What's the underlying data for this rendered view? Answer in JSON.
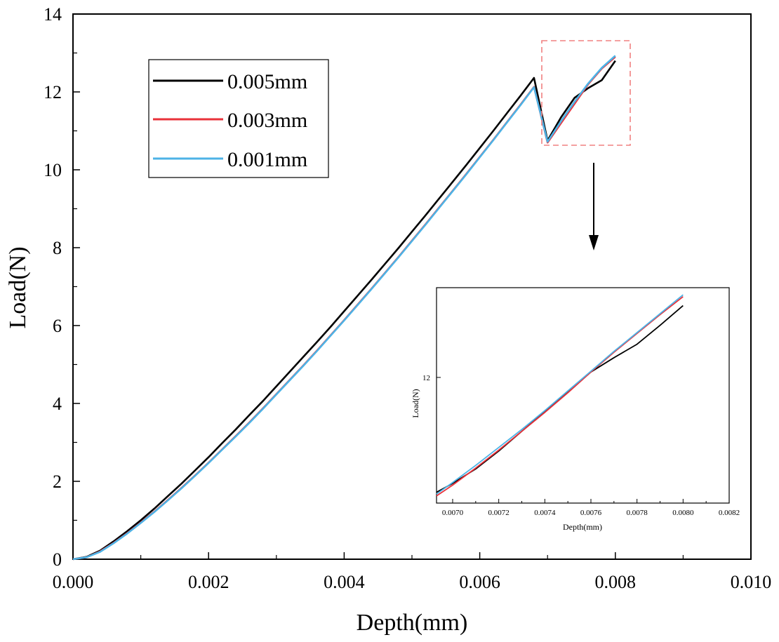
{
  "chart_data": [
    {
      "type": "line",
      "title": "",
      "xlabel": "Depth(mm)",
      "ylabel": "Load(N)",
      "xlim": [
        0.0,
        0.01
      ],
      "ylim": [
        0,
        14
      ],
      "xticks": [
        "0.000",
        "0.002",
        "0.004",
        "0.006",
        "0.008",
        "0.010"
      ],
      "xtick_values": [
        0.0,
        0.002,
        0.004,
        0.006,
        0.008,
        0.01
      ],
      "yticks": [
        "0",
        "2",
        "4",
        "6",
        "8",
        "10",
        "12",
        "14"
      ],
      "ytick_values": [
        0,
        2,
        4,
        6,
        8,
        10,
        12,
        14
      ],
      "grid": false,
      "legend_position": "top-left",
      "series": [
        {
          "name": "0.005mm",
          "color": "#000000",
          "x": [
            0.0,
            0.0002,
            0.0004,
            0.0006,
            0.0008,
            0.001,
            0.0012,
            0.0014,
            0.0016,
            0.0018,
            0.002,
            0.0022,
            0.0024,
            0.0026,
            0.0028,
            0.003,
            0.0032,
            0.0034,
            0.0036,
            0.0038,
            0.004,
            0.0042,
            0.0044,
            0.0046,
            0.0048,
            0.005,
            0.0052,
            0.0054,
            0.0056,
            0.0058,
            0.006,
            0.0062,
            0.0064,
            0.0066,
            0.0068,
            0.007,
            0.0072,
            0.0074,
            0.0076,
            0.0078,
            0.008
          ],
          "y": [
            0.0,
            0.06,
            0.22,
            0.46,
            0.72,
            1.0,
            1.3,
            1.62,
            1.94,
            2.28,
            2.62,
            2.98,
            3.33,
            3.7,
            4.06,
            4.44,
            4.82,
            5.2,
            5.58,
            5.97,
            6.37,
            6.77,
            7.17,
            7.58,
            7.99,
            8.41,
            8.83,
            9.26,
            9.69,
            10.12,
            10.56,
            11.0,
            11.45,
            11.9,
            12.36,
            10.75,
            11.35,
            11.85,
            12.1,
            12.3,
            12.8
          ]
        },
        {
          "name": "0.003mm",
          "color": "#e8313a",
          "x": [
            0.0,
            0.0002,
            0.0004,
            0.0006,
            0.0008,
            0.001,
            0.0012,
            0.0014,
            0.0016,
            0.0018,
            0.002,
            0.0022,
            0.0024,
            0.0026,
            0.0028,
            0.003,
            0.0032,
            0.0034,
            0.0036,
            0.0038,
            0.004,
            0.0042,
            0.0044,
            0.0046,
            0.0048,
            0.005,
            0.0052,
            0.0054,
            0.0056,
            0.0058,
            0.006,
            0.0062,
            0.0064,
            0.0066,
            0.0068,
            0.007,
            0.0072,
            0.0074,
            0.0076,
            0.0078,
            0.008
          ],
          "y": [
            0.0,
            0.05,
            0.2,
            0.42,
            0.67,
            0.94,
            1.22,
            1.52,
            1.83,
            2.15,
            2.48,
            2.82,
            3.16,
            3.51,
            3.87,
            4.24,
            4.61,
            4.98,
            5.36,
            5.75,
            6.14,
            6.54,
            6.94,
            7.35,
            7.76,
            8.18,
            8.6,
            9.03,
            9.46,
            9.89,
            10.33,
            10.77,
            11.22,
            11.67,
            12.13,
            10.7,
            11.2,
            11.7,
            12.2,
            12.6,
            12.9
          ]
        },
        {
          "name": "0.001mm",
          "color": "#4db3e6",
          "x": [
            0.0,
            0.0002,
            0.0004,
            0.0006,
            0.0008,
            0.001,
            0.0012,
            0.0014,
            0.0016,
            0.0018,
            0.002,
            0.0022,
            0.0024,
            0.0026,
            0.0028,
            0.003,
            0.0032,
            0.0034,
            0.0036,
            0.0038,
            0.004,
            0.0042,
            0.0044,
            0.0046,
            0.0048,
            0.005,
            0.0052,
            0.0054,
            0.0056,
            0.0058,
            0.006,
            0.0062,
            0.0064,
            0.0066,
            0.0068,
            0.007,
            0.0072,
            0.0074,
            0.0076,
            0.0078,
            0.008
          ],
          "y": [
            0.0,
            0.05,
            0.19,
            0.41,
            0.66,
            0.93,
            1.21,
            1.51,
            1.82,
            2.14,
            2.47,
            2.81,
            3.15,
            3.5,
            3.86,
            4.23,
            4.6,
            4.97,
            5.35,
            5.74,
            6.13,
            6.53,
            6.93,
            7.34,
            7.75,
            8.17,
            8.59,
            9.02,
            9.45,
            9.88,
            10.32,
            10.76,
            11.21,
            11.66,
            12.12,
            10.72,
            11.25,
            11.75,
            12.22,
            12.62,
            12.93
          ]
        }
      ]
    },
    {
      "type": "line",
      "title": "",
      "xlabel": "Depth(mm)",
      "ylabel": "Load(N)",
      "xlim": [
        0.00693,
        0.0082
      ],
      "ylim": [
        10.6,
        13.0
      ],
      "xticks": [
        "0.0070",
        "0.0072",
        "0.0074",
        "0.0076",
        "0.0078",
        "0.0080",
        "0.0082"
      ],
      "xtick_values": [
        0.007,
        0.0072,
        0.0074,
        0.0076,
        0.0078,
        0.008,
        0.0082
      ],
      "yticks": [
        "12"
      ],
      "ytick_values": [
        12
      ],
      "grid": false,
      "series": [
        {
          "name": "0.005mm",
          "color": "#000000",
          "x": [
            0.00693,
            0.007,
            0.0071,
            0.0072,
            0.0073,
            0.0074,
            0.0075,
            0.0076,
            0.0077,
            0.0078,
            0.0079,
            0.008
          ],
          "y": [
            10.72,
            10.82,
            10.98,
            11.18,
            11.4,
            11.62,
            11.84,
            12.06,
            12.22,
            12.37,
            12.58,
            12.8
          ]
        },
        {
          "name": "0.003mm",
          "color": "#e8313a",
          "x": [
            0.00693,
            0.007,
            0.0071,
            0.0072,
            0.0073,
            0.0074,
            0.0075,
            0.0076,
            0.0077,
            0.0078,
            0.0079,
            0.008
          ],
          "y": [
            10.68,
            10.8,
            10.99,
            11.19,
            11.4,
            11.61,
            11.83,
            12.06,
            12.28,
            12.49,
            12.7,
            12.9
          ]
        },
        {
          "name": "0.001mm",
          "color": "#4db3e6",
          "x": [
            0.00693,
            0.007,
            0.0071,
            0.0072,
            0.0073,
            0.0074,
            0.0075,
            0.0076,
            0.0077,
            0.0078,
            0.0079,
            0.008
          ],
          "y": [
            10.7,
            10.83,
            11.02,
            11.22,
            11.42,
            11.63,
            11.85,
            12.07,
            12.29,
            12.5,
            12.71,
            12.92
          ]
        }
      ]
    }
  ],
  "legend": {
    "items": [
      {
        "label": "0.005mm",
        "color": "#000000"
      },
      {
        "label": "0.003mm",
        "color": "#e8313a"
      },
      {
        "label": "0.001mm",
        "color": "#4db3e6"
      }
    ]
  },
  "zoom_box_color": "#f08080"
}
